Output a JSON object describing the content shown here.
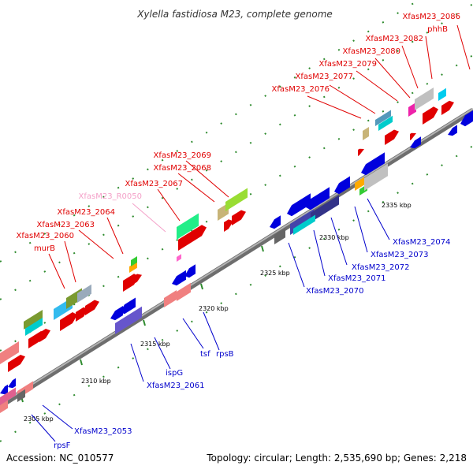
{
  "title": "Xylella fastidiosa M23, complete genome",
  "footer": {
    "accession": "Accession: NC_010577",
    "summary": "Topology: circular; Length: 2,535,690 bp; Genes: 2,218"
  },
  "colors": {
    "backbone": "#8c8c8c",
    "tick": "#2e8b2e",
    "label_red": "#e00000",
    "label_blue": "#0000cc",
    "label_pink": "#f4a0c8"
  },
  "ticks": [
    {
      "label": "2305 kbp"
    },
    {
      "label": "2310 kbp"
    },
    {
      "label": "2315 kbp"
    },
    {
      "label": "2320 kbp"
    },
    {
      "label": "2325 kbp"
    },
    {
      "label": "2330 kbp"
    },
    {
      "label": "2335 kbp"
    }
  ],
  "top_labels": [
    {
      "text": "XfasM23_2086",
      "color": "red"
    },
    {
      "text": "phhB",
      "color": "red"
    },
    {
      "text": "XfasM23_2082",
      "color": "red"
    },
    {
      "text": "XfasM23_2080",
      "color": "red"
    },
    {
      "text": "XfasM23_2079",
      "color": "red"
    },
    {
      "text": "XfasM23_2077",
      "color": "red"
    },
    {
      "text": "XfasM23_2076",
      "color": "red"
    },
    {
      "text": "XfasM23_2069",
      "color": "red"
    },
    {
      "text": "XfasM23_2068",
      "color": "red"
    },
    {
      "text": "XfasM23_2067",
      "color": "red"
    },
    {
      "text": "XfasM23_R0050",
      "color": "pink"
    },
    {
      "text": "XfasM23_2064",
      "color": "red"
    },
    {
      "text": "XfasM23_2063",
      "color": "red"
    },
    {
      "text": "XfasM23_2060",
      "color": "red"
    },
    {
      "text": "murB",
      "color": "red"
    }
  ],
  "bottom_labels": [
    {
      "text": "XfasM23_2074",
      "color": "blue"
    },
    {
      "text": "XfasM23_2073",
      "color": "blue"
    },
    {
      "text": "XfasM23_2072",
      "color": "blue"
    },
    {
      "text": "XfasM23_2071",
      "color": "blue"
    },
    {
      "text": "XfasM23_2070",
      "color": "blue"
    },
    {
      "text": "rpsB",
      "color": "blue"
    },
    {
      "text": "tsf",
      "color": "blue"
    },
    {
      "text": "ispG",
      "color": "blue"
    },
    {
      "text": "XfasM23_2061",
      "color": "blue"
    },
    {
      "text": "XfasM23_2053",
      "color": "blue"
    },
    {
      "text": "rpsF",
      "color": "blue"
    }
  ]
}
